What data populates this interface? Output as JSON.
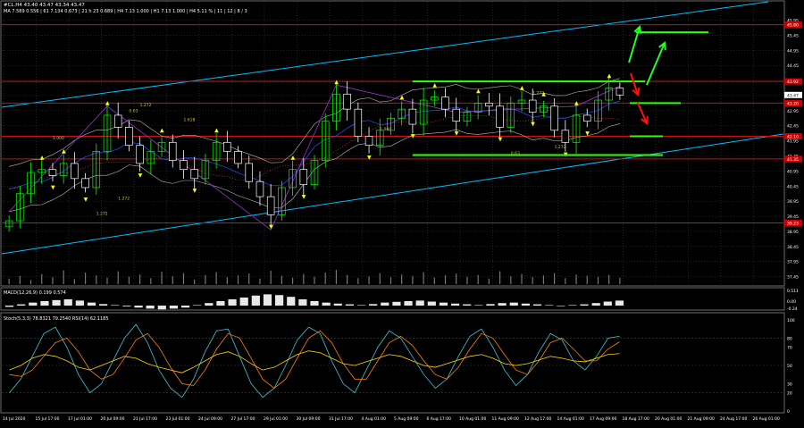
{
  "header": {
    "symbol_line": "#CL.H4 43.40 43.47 43.34 43.47",
    "indicator_line": "MA 7.589 0.556 | 61 7.134 0.673 | 21 h 23 0.689 | H4 7.13 1.000 | H1 7.13 1.000 | H4 5.11 % | 11 | 12 | 8 / 3"
  },
  "price_axis": {
    "labels": [
      "45.95",
      "45.45",
      "44.95",
      "44.45",
      "43.95",
      "43.45",
      "42.95",
      "42.45",
      "41.95",
      "41.45",
      "40.95",
      "40.45",
      "39.95",
      "39.45",
      "38.95",
      "38.45",
      "37.95",
      "37.45"
    ],
    "highlights": [
      {
        "label": "45.80",
        "price": 45.8,
        "color": "#cc0000"
      },
      {
        "label": "43.92",
        "price": 43.92,
        "color": "#cc0000"
      },
      {
        "label": "43.47",
        "price": 43.47,
        "color": "#ffffff"
      },
      {
        "label": "43.20",
        "price": 43.2,
        "color": "#cc0000"
      },
      {
        "label": "42.10",
        "price": 42.1,
        "color": "#cc0000"
      },
      {
        "label": "41.35",
        "price": 41.35,
        "color": "#cc0000"
      },
      {
        "label": "39.23",
        "price": 39.23,
        "color": "#cc0000"
      }
    ]
  },
  "time_axis": {
    "labels": [
      "14 Jul 2020",
      "15 Jul 17:00",
      "17 Jul 01:00",
      "20 Jul 09:00",
      "21 Jul 17:00",
      "23 Jul 01:00",
      "24 Jul 09:00",
      "27 Jul 17:00",
      "29 Jul 01:00",
      "30 Jul 09:00",
      "31 Jul 17:00",
      "4 Aug 01:00",
      "5 Aug 09:00",
      "6 Aug 17:00",
      "10 Aug 01:00",
      "11 Aug 09:00",
      "12 Aug 17:00",
      "14 Aug 01:00",
      "17 Aug 09:00",
      "18 Aug 17:00",
      "20 Aug 01:00",
      "21 Aug 09:00",
      "24 Aug 17:00",
      "26 Aug 01:00"
    ]
  },
  "macd": {
    "label": "MACD(12,26,9) 0.199 0.574",
    "axis_labels": [
      "0.511",
      "0.00",
      "-0.24"
    ]
  },
  "stoch": {
    "label": "Stoch(5,3,3) 78.8321 79.2540  RSI(14) 62.1185",
    "axis_labels": [
      "100",
      "80",
      "70",
      "50",
      "30",
      "20",
      "0"
    ]
  },
  "fib_labels": [
    "1.272",
    "1.618",
    "1.000",
    "1.272",
    "1.272",
    "0.63",
    "1.000",
    "0.63",
    "1.272",
    "1.272"
  ],
  "colors": {
    "bull": "#00ff00",
    "bear": "#ffffff",
    "level_line": "#cc1111",
    "channel": "#00bfff",
    "range_line": "#33ff00",
    "arrow_up": "#22ff22",
    "arrow_down": "#ff1010",
    "pattern": "#9933cc",
    "stoch_k": "#3fc6d6",
    "stoch_d": "#ff8000",
    "rsi": "#ffd700"
  },
  "chart_data": {
    "type": "candlestick",
    "symbol": "#CL",
    "timeframe": "H4",
    "last_price": 43.47,
    "y_range": [
      37.2,
      46.5
    ],
    "x_range": [
      "14 Jul 2020",
      "26 Aug 01:00"
    ],
    "resistance_support_levels": [
      45.8,
      43.92,
      43.2,
      42.1,
      41.35,
      39.23
    ],
    "range_box": {
      "top": 43.92,
      "bottom": 41.48
    },
    "ohlc_path": [
      39.3,
      40.2,
      40.9,
      41.0,
      40.8,
      41.2,
      40.7,
      40.4,
      41.6,
      42.8,
      42.4,
      41.8,
      41.2,
      41.6,
      41.9,
      41.3,
      41.0,
      40.7,
      41.3,
      41.9,
      41.6,
      41.2,
      40.6,
      40.1,
      39.5,
      40.4,
      41.0,
      40.5,
      41.3,
      42.6,
      43.5,
      43.0,
      42.1,
      41.8,
      42.3,
      42.7,
      43.0,
      42.5,
      43.3,
      43.4,
      43.0,
      42.6,
      42.9,
      43.2,
      43.1,
      42.4,
      43.2,
      43.3,
      42.9,
      43.1,
      42.3,
      41.9,
      42.8,
      42.6,
      43.3,
      43.7,
      43.47
    ],
    "volume": [
      12,
      18,
      9,
      22,
      15,
      30,
      11,
      25,
      19,
      14,
      28,
      16,
      21,
      13,
      27,
      17,
      24,
      10,
      20,
      26,
      15,
      19,
      23,
      12,
      29,
      18,
      14,
      22,
      16,
      25,
      31,
      20,
      13,
      17,
      24,
      15,
      21,
      18,
      26,
      14,
      19,
      23,
      16,
      20,
      12,
      28,
      17,
      22,
      15,
      19,
      24,
      13,
      21,
      18,
      16,
      20,
      14
    ],
    "macd_histogram": [
      -0.05,
      0.05,
      0.12,
      0.18,
      0.22,
      0.25,
      0.2,
      0.12,
      0.06,
      0.02,
      -0.03,
      -0.08,
      -0.12,
      -0.15,
      -0.12,
      -0.08,
      0.02,
      0.1,
      0.18,
      0.25,
      0.32,
      0.4,
      0.45,
      0.42,
      0.35,
      0.25,
      0.18,
      0.12,
      0.08,
      0.05,
      0.02,
      0.06,
      0.12,
      0.15,
      0.18,
      0.2,
      0.16,
      0.12,
      0.08,
      0.05,
      0.02,
      0.06,
      0.1,
      0.12,
      0.08,
      0.05,
      0.02,
      -0.02,
      0.02,
      0.05,
      0.1,
      0.16,
      0.2
    ],
    "stoch_k": [
      20,
      35,
      60,
      85,
      92,
      70,
      40,
      20,
      30,
      55,
      80,
      95,
      75,
      45,
      25,
      15,
      35,
      65,
      88,
      90,
      60,
      30,
      15,
      25,
      50,
      78,
      92,
      85,
      55,
      30,
      20,
      45,
      70,
      88,
      80,
      60,
      40,
      25,
      35,
      60,
      82,
      90,
      70,
      45,
      28,
      40,
      65,
      85,
      78,
      55,
      45,
      60,
      80,
      82
    ],
    "stoch_d": [
      40,
      38,
      45,
      60,
      75,
      80,
      65,
      45,
      35,
      40,
      58,
      78,
      85,
      70,
      48,
      30,
      28,
      45,
      68,
      85,
      80,
      58,
      35,
      25,
      35,
      58,
      80,
      88,
      75,
      52,
      35,
      35,
      55,
      75,
      82,
      72,
      55,
      40,
      35,
      48,
      68,
      85,
      80,
      62,
      45,
      40,
      55,
      75,
      80,
      68,
      55,
      55,
      68,
      76
    ],
    "rsi": [
      45,
      50,
      58,
      62,
      60,
      55,
      48,
      45,
      50,
      55,
      60,
      58,
      52,
      48,
      45,
      42,
      48,
      55,
      62,
      65,
      60,
      52,
      45,
      48,
      55,
      62,
      66,
      64,
      58,
      52,
      50,
      54,
      58,
      62,
      60,
      55,
      50,
      48,
      52,
      56,
      60,
      62,
      58,
      52,
      50,
      52,
      56,
      60,
      58,
      55,
      54,
      58,
      62,
      63
    ]
  }
}
